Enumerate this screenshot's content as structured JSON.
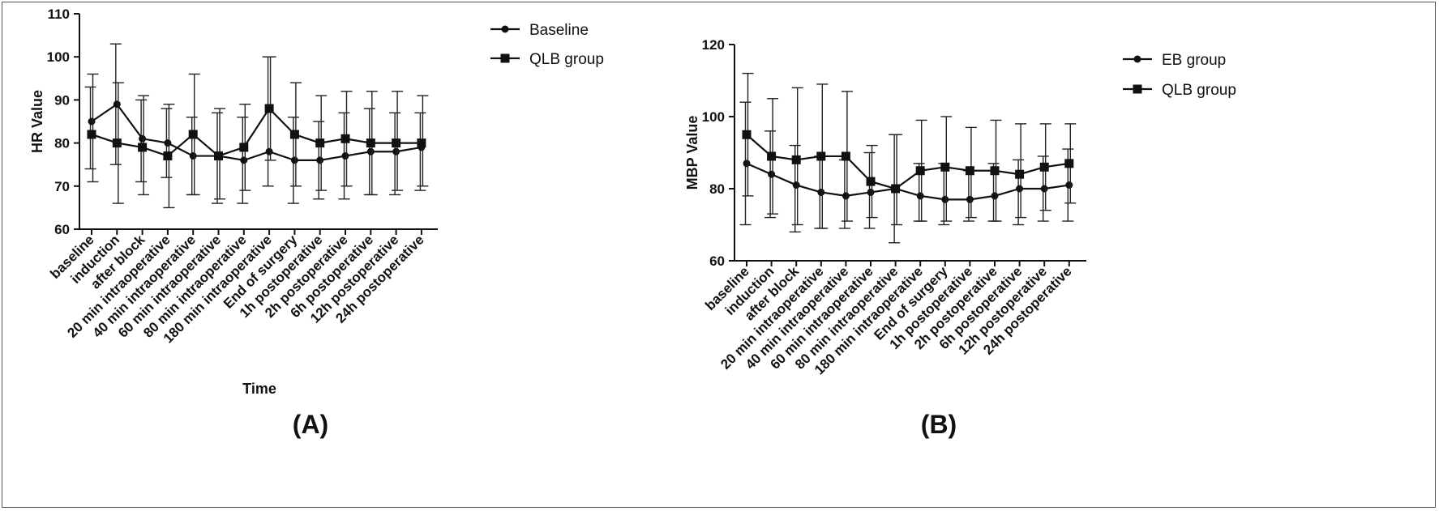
{
  "chart_data": [
    {
      "type": "line",
      "panel_label": "(A)",
      "xlabel": "Time",
      "ylabel": "HR Value",
      "ylim": [
        60,
        110
      ],
      "yticks": [
        60,
        70,
        80,
        90,
        100,
        110
      ],
      "categories": [
        "baseline",
        "induction",
        "after block",
        "20 min intraoperative",
        "40 min intraoperative",
        "60 min intraoperative",
        "80 min intraoperative",
        "180 min intraoperative",
        "End of surgery",
        "1h postoperative",
        "2h postoperative",
        "6h postoperative",
        "12h postoperative",
        "24h postoperative"
      ],
      "legend_position": "top-right outside",
      "series": [
        {
          "name": "Baseline",
          "marker": "circle",
          "values": [
            85,
            89,
            81,
            80,
            77,
            77,
            76,
            78,
            76,
            76,
            77,
            78,
            78,
            79
          ],
          "err_low": [
            74,
            75,
            71,
            72,
            68,
            66,
            66,
            70,
            66,
            67,
            67,
            68,
            68,
            69
          ],
          "err_high": [
            93,
            103,
            90,
            88,
            86,
            87,
            86,
            100,
            86,
            85,
            87,
            88,
            87,
            87
          ]
        },
        {
          "name": "QLB group",
          "marker": "square",
          "values": [
            82,
            80,
            79,
            77,
            82,
            77,
            79,
            88,
            82,
            80,
            81,
            80,
            80,
            80
          ],
          "err_low": [
            71,
            66,
            68,
            65,
            68,
            67,
            69,
            76,
            70,
            69,
            70,
            68,
            69,
            70
          ],
          "err_high": [
            96,
            94,
            91,
            89,
            96,
            88,
            89,
            100,
            94,
            91,
            92,
            92,
            92,
            91
          ]
        }
      ]
    },
    {
      "type": "line",
      "panel_label": "(B)",
      "xlabel": "",
      "ylabel": "MBP Value",
      "ylim": [
        60,
        120
      ],
      "yticks": [
        60,
        80,
        100,
        120
      ],
      "categories": [
        "baseline",
        "induction",
        "after block",
        "20 min intraoperative",
        "40 min intraoperative",
        "60 min intraoperative",
        "80 min intraoperative",
        "180 min intraoperative",
        "End of surgery",
        "1h postoperative",
        "2h postoperative",
        "6h postoperative",
        "12h postoperative",
        "24h postoperative"
      ],
      "legend_position": "top-right outside",
      "series": [
        {
          "name": "EB group",
          "marker": "circle",
          "values": [
            87,
            84,
            81,
            79,
            78,
            79,
            80,
            78,
            77,
            77,
            78,
            80,
            80,
            81
          ],
          "err_low": [
            70,
            72,
            68,
            69,
            69,
            69,
            65,
            71,
            70,
            71,
            71,
            70,
            71,
            71
          ],
          "err_high": [
            104,
            96,
            92,
            89,
            88,
            90,
            95,
            87,
            87,
            85,
            87,
            88,
            89,
            91
          ]
        },
        {
          "name": "QLB group",
          "marker": "square",
          "values": [
            95,
            89,
            88,
            89,
            89,
            82,
            80,
            85,
            86,
            85,
            85,
            84,
            86,
            87
          ],
          "err_low": [
            78,
            73,
            70,
            69,
            71,
            72,
            70,
            71,
            71,
            72,
            71,
            72,
            74,
            76
          ],
          "err_high": [
            112,
            105,
            108,
            109,
            107,
            92,
            95,
            99,
            100,
            97,
            99,
            98,
            98,
            98
          ]
        }
      ]
    }
  ]
}
